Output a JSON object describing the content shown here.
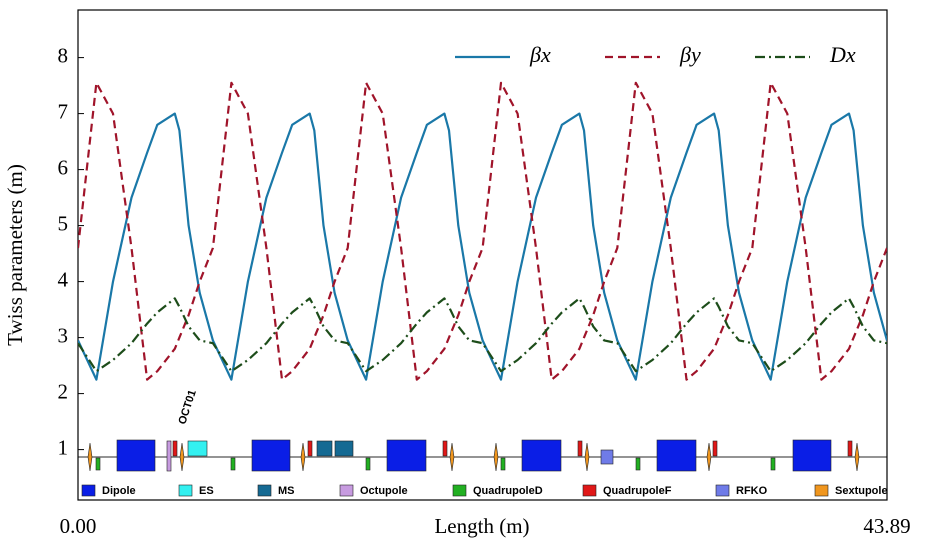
{
  "chart_data": {
    "type": "line",
    "y_label": "Twiss parameters (m)",
    "x_label": "Length (m)",
    "x": [
      0,
      1,
      1.9,
      2.9,
      3.75,
      4.3,
      5.25,
      5.5,
      6,
      6.6,
      7.32,
      8.32,
      9.22,
      10.22,
      11.07,
      11.62,
      12.57,
      12.82,
      13.32,
      13.92,
      14.63,
      15.63,
      16.53,
      17.53,
      18.38,
      18.93,
      19.88,
      20.13,
      20.63,
      21.23,
      21.95,
      22.95,
      23.85,
      24.85,
      25.7,
      26.25,
      27.2,
      27.45,
      27.95,
      28.55,
      29.26,
      30.26,
      31.16,
      32.16,
      33.01,
      33.56,
      34.51,
      34.76,
      35.26,
      35.86,
      36.58,
      37.58,
      38.48,
      39.48,
      40.33,
      40.88,
      41.83,
      42.08,
      42.58,
      43.18,
      43.89
    ],
    "series": [
      {
        "name": "βx",
        "color": "#1a78a8",
        "dash": "none",
        "values": [
          2.95,
          2.25,
          4.0,
          5.5,
          6.3,
          6.8,
          7.0,
          6.7,
          5.0,
          3.8,
          2.95,
          2.25,
          4.0,
          5.5,
          6.3,
          6.8,
          7.0,
          6.7,
          5.0,
          3.8,
          2.95,
          2.25,
          4.0,
          5.5,
          6.3,
          6.8,
          7.0,
          6.7,
          5.0,
          3.8,
          2.95,
          2.25,
          4.0,
          5.5,
          6.3,
          6.8,
          7.0,
          6.7,
          5.0,
          3.8,
          2.95,
          2.25,
          4.0,
          5.5,
          6.3,
          6.8,
          7.0,
          6.7,
          5.0,
          3.8,
          2.95,
          2.25,
          4.0,
          5.5,
          6.3,
          6.8,
          7.0,
          6.7,
          5.0,
          3.8,
          2.95
        ]
      },
      {
        "name": "βy",
        "color": "#a0142a",
        "dash": "8 5",
        "values": [
          4.6,
          7.55,
          7.0,
          4.6,
          2.25,
          2.4,
          2.8,
          3.0,
          3.4,
          4.0,
          4.6,
          7.55,
          7.0,
          4.6,
          2.25,
          2.4,
          2.8,
          3.0,
          3.4,
          4.0,
          4.6,
          7.55,
          7.0,
          4.6,
          2.25,
          2.4,
          2.8,
          3.0,
          3.4,
          4.0,
          4.6,
          7.55,
          7.0,
          4.6,
          2.25,
          2.4,
          2.8,
          3.0,
          3.4,
          4.0,
          4.6,
          7.55,
          7.0,
          4.6,
          2.25,
          2.4,
          2.8,
          3.0,
          3.4,
          4.0,
          4.6,
          7.55,
          7.0,
          4.6,
          2.25,
          2.4,
          2.8,
          3.0,
          3.4,
          4.0,
          4.6
        ]
      },
      {
        "name": "Dx",
        "color": "#1d4d1a",
        "dash": "10 4 2 4",
        "values": [
          2.9,
          2.4,
          2.6,
          2.9,
          3.25,
          3.45,
          3.7,
          3.55,
          3.2,
          2.95,
          2.9,
          2.4,
          2.6,
          2.9,
          3.25,
          3.45,
          3.7,
          3.55,
          3.2,
          2.95,
          2.9,
          2.4,
          2.6,
          2.9,
          3.25,
          3.45,
          3.7,
          3.55,
          3.2,
          2.95,
          2.9,
          2.4,
          2.6,
          2.9,
          3.25,
          3.45,
          3.7,
          3.55,
          3.2,
          2.95,
          2.9,
          2.4,
          2.6,
          2.9,
          3.25,
          3.45,
          3.7,
          3.55,
          3.2,
          2.95,
          2.9,
          2.4,
          2.6,
          2.9,
          3.25,
          3.45,
          3.7,
          3.55,
          3.2,
          2.95,
          2.9
        ]
      }
    ],
    "xlim": [
      0,
      43.89
    ],
    "xticks": [
      {
        "value": 0,
        "label": "0.00"
      },
      43.89
    ],
    "ylim": [
      0.1,
      8.85
    ],
    "yticks": [
      1,
      2,
      3,
      4,
      5,
      6,
      7,
      8
    ],
    "legend": "upper right",
    "annotation": "OCT01",
    "lattice_legend": [
      {
        "name": "Dipole",
        "color": "#0a1ee6"
      },
      {
        "name": "ES",
        "color": "#33f0f0"
      },
      {
        "name": "MS",
        "color": "#156a93"
      },
      {
        "name": "Octupole",
        "color": "#c79be0"
      },
      {
        "name": "QuadrupoleD",
        "color": "#22b022"
      },
      {
        "name": "QuadrupoleF",
        "color": "#e01818"
      },
      {
        "name": "RFKO",
        "color": "#6f7be8"
      },
      {
        "name": "Sextupole",
        "color": "#f0961e"
      }
    ]
  }
}
